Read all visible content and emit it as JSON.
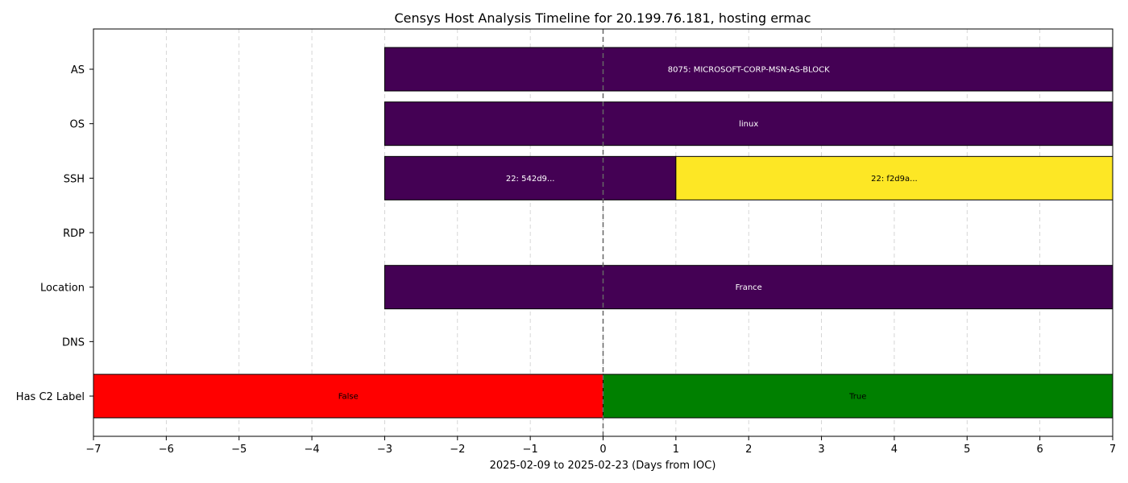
{
  "chart_data": {
    "type": "timeline",
    "title": "Censys Host Analysis Timeline for 20.199.76.181, hosting ermac",
    "xlabel": "2025-02-09 to 2025-02-23 (Days from IOC)",
    "ylabel": "",
    "xlim": [
      -7,
      7
    ],
    "xticks": [
      -7,
      -6,
      -5,
      -4,
      -3,
      -2,
      -1,
      0,
      1,
      2,
      3,
      4,
      5,
      6,
      7
    ],
    "xtick_labels": [
      "−7",
      "−6",
      "−5",
      "−4",
      "−3",
      "−2",
      "−1",
      "0",
      "1",
      "2",
      "3",
      "4",
      "5",
      "6",
      "7"
    ],
    "grid": "x-dashed",
    "reference_line_x": 0,
    "categories": [
      "AS",
      "OS",
      "SSH",
      "RDP",
      "Location",
      "DNS",
      "Has C2 Label"
    ],
    "segments": [
      {
        "category": "AS",
        "start": -3,
        "end": 7,
        "label": "8075: MICROSOFT-CORP-MSN-AS-BLOCK",
        "color": "#440154",
        "text_color": "#ffffff"
      },
      {
        "category": "OS",
        "start": -3,
        "end": 7,
        "label": "linux",
        "color": "#440154",
        "text_color": "#ffffff"
      },
      {
        "category": "SSH",
        "start": -3,
        "end": 1,
        "label": "22: 542d9...",
        "color": "#440154",
        "text_color": "#ffffff"
      },
      {
        "category": "SSH",
        "start": 1,
        "end": 7,
        "label": "22: f2d9a...",
        "color": "#fde725",
        "text_color": "#000000"
      },
      {
        "category": "Location",
        "start": -3,
        "end": 7,
        "label": "France",
        "color": "#440154",
        "text_color": "#ffffff"
      },
      {
        "category": "Has C2 Label",
        "start": -7,
        "end": 0,
        "label": "False",
        "color": "#ff0000",
        "text_color": "#000000"
      },
      {
        "category": "Has C2 Label",
        "start": 0,
        "end": 7,
        "label": "True",
        "color": "#008000",
        "text_color": "#000000"
      }
    ]
  }
}
